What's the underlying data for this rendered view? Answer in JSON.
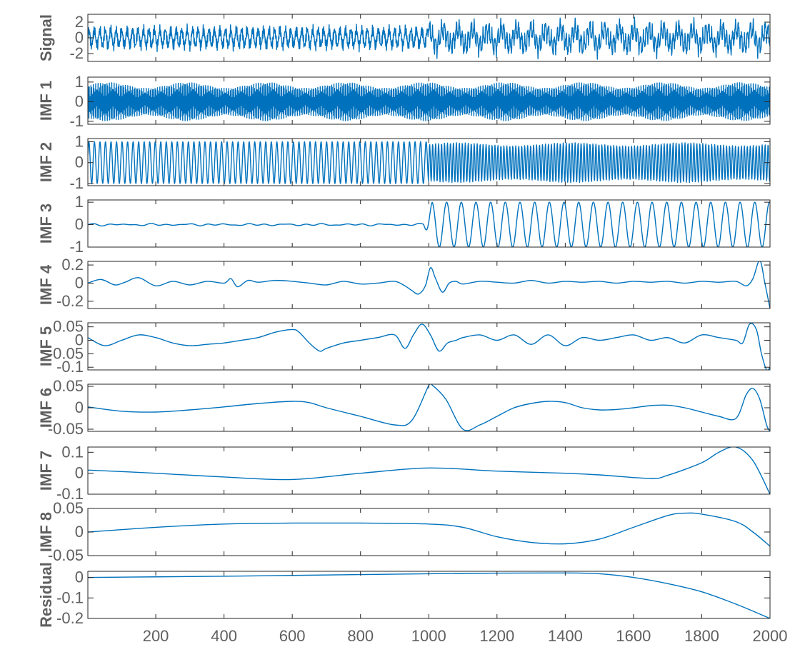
{
  "chart_data": {
    "type": "line",
    "title": "",
    "xlabel": "",
    "line_color": "#0072bd",
    "xlim": [
      1,
      2000
    ],
    "xticks": [
      "200",
      "400",
      "600",
      "800",
      "1000",
      "1200",
      "1400",
      "1600",
      "1800",
      "2000"
    ],
    "xtick_values": [
      200,
      400,
      600,
      800,
      1000,
      1200,
      1400,
      1600,
      1800,
      2000
    ],
    "panels": [
      {
        "name": "signal",
        "ylabel": "Signal",
        "ylim": [
          -3,
          3
        ],
        "yticks": [
          "2",
          "0",
          "-2"
        ],
        "ytick_values": [
          2,
          0,
          -2
        ],
        "model": "signal"
      },
      {
        "name": "imf1",
        "ylabel": "IMF 1",
        "ylim": [
          -1.15,
          1.25
        ],
        "yticks": [
          "1",
          "0",
          "-1"
        ],
        "ytick_values": [
          1,
          0,
          -1
        ],
        "model": "imf1"
      },
      {
        "name": "imf2",
        "ylabel": "IMF 2",
        "ylim": [
          -1.1,
          1.15
        ],
        "yticks": [
          "1",
          "0",
          "-1"
        ],
        "ytick_values": [
          1,
          0,
          -1
        ],
        "model": "imf2"
      },
      {
        "name": "imf3",
        "ylabel": "IMF 3",
        "ylim": [
          -1.0,
          1.1
        ],
        "yticks": [
          "1",
          "0",
          "-1"
        ],
        "ytick_values": [
          1,
          0,
          -1
        ],
        "model": "imf3"
      },
      {
        "name": "imf4",
        "ylabel": "IMF 4",
        "ylim": [
          -0.28,
          0.24
        ],
        "yticks": [
          "0.2",
          "0",
          "-0.2"
        ],
        "ytick_values": [
          0.2,
          0,
          -0.2
        ],
        "x": [
          1,
          40,
          80,
          110,
          150,
          200,
          250,
          300,
          350,
          400,
          420,
          440,
          470,
          500,
          550,
          600,
          650,
          700,
          750,
          800,
          850,
          900,
          930,
          950,
          970,
          990,
          1005,
          1020,
          1040,
          1060,
          1080,
          1100,
          1150,
          1200,
          1250,
          1300,
          1350,
          1400,
          1450,
          1500,
          1550,
          1600,
          1650,
          1700,
          1750,
          1800,
          1850,
          1900,
          1930,
          1950,
          1970,
          1985,
          2000
        ],
        "y": [
          0,
          0.04,
          -0.02,
          0.01,
          0.06,
          -0.03,
          0.02,
          -0.02,
          0.02,
          0.0,
          0.05,
          -0.04,
          0.03,
          0.01,
          0.03,
          0.02,
          0.0,
          -0.02,
          0.02,
          -0.01,
          0.0,
          0.02,
          -0.03,
          -0.08,
          -0.12,
          -0.03,
          0.17,
          0.05,
          -0.1,
          0.0,
          0.02,
          -0.01,
          0.02,
          0.01,
          0.0,
          0.03,
          0.0,
          0.02,
          0.01,
          0.02,
          0.0,
          0.02,
          0.01,
          0.02,
          0.0,
          0.02,
          0.01,
          0.02,
          -0.03,
          0.05,
          0.25,
          0.0,
          -0.28
        ]
      },
      {
        "name": "imf5",
        "ylabel": "IMF 5",
        "ylim": [
          -0.11,
          0.065
        ],
        "yticks": [
          "0.05",
          "0",
          "-0.05",
          "-0.1"
        ],
        "ytick_values": [
          0.05,
          0,
          -0.05,
          -0.1
        ],
        "x": [
          1,
          50,
          100,
          150,
          200,
          250,
          300,
          350,
          400,
          450,
          500,
          550,
          600,
          620,
          650,
          680,
          700,
          750,
          800,
          850,
          900,
          930,
          955,
          980,
          1005,
          1030,
          1055,
          1080,
          1100,
          1150,
          1200,
          1250,
          1300,
          1350,
          1400,
          1450,
          1500,
          1550,
          1600,
          1650,
          1700,
          1750,
          1800,
          1850,
          1900,
          1920,
          1940,
          1960,
          1975,
          1990,
          2000
        ],
        "y": [
          0.01,
          -0.02,
          0.0,
          0.02,
          0.01,
          -0.01,
          -0.02,
          -0.015,
          -0.01,
          0.0,
          0.01,
          0.03,
          0.04,
          0.03,
          -0.01,
          -0.04,
          -0.03,
          -0.01,
          0.0,
          0.01,
          0.02,
          -0.03,
          0.02,
          0.06,
          0.02,
          -0.04,
          -0.01,
          0.0,
          0.01,
          0.02,
          0.0,
          0.02,
          -0.015,
          0.02,
          -0.02,
          0.01,
          0.0,
          0.01,
          0.02,
          0.0,
          0.01,
          -0.01,
          0.02,
          0.01,
          0.0,
          -0.01,
          0.06,
          0.04,
          -0.05,
          -0.11,
          -0.1
        ]
      },
      {
        "name": "imf6",
        "ylabel": "IMF 6",
        "ylim": [
          -0.055,
          0.055
        ],
        "yticks": [
          "0.05",
          "0",
          "-0.05"
        ],
        "ytick_values": [
          0.05,
          0,
          -0.05
        ],
        "x": [
          1,
          100,
          200,
          300,
          400,
          500,
          600,
          650,
          700,
          800,
          900,
          950,
          1000,
          1010,
          1050,
          1100,
          1150,
          1200,
          1250,
          1300,
          1350,
          1400,
          1450,
          1500,
          1550,
          1600,
          1650,
          1700,
          1750,
          1800,
          1850,
          1900,
          1930,
          1950,
          1970,
          1990,
          2000
        ],
        "y": [
          0.002,
          -0.008,
          -0.01,
          -0.005,
          0.002,
          0.01,
          0.015,
          0.012,
          0.0,
          -0.02,
          -0.04,
          -0.03,
          0.052,
          0.053,
          0.02,
          -0.05,
          -0.04,
          -0.02,
          0.0,
          0.01,
          0.015,
          0.012,
          0.0,
          -0.005,
          -0.004,
          0.0,
          0.005,
          0.006,
          0.0,
          -0.01,
          -0.02,
          -0.025,
          0.03,
          0.045,
          0.02,
          -0.04,
          -0.055
        ]
      },
      {
        "name": "imf7",
        "ylabel": "IMF 7",
        "ylim": [
          -0.1,
          0.125
        ],
        "yticks": [
          "0.1",
          "0",
          "-0.1"
        ],
        "ytick_values": [
          0.1,
          0,
          -0.1
        ],
        "x": [
          1,
          200,
          400,
          600,
          800,
          1000,
          1200,
          1400,
          1500,
          1650,
          1700,
          1800,
          1850,
          1900,
          1950,
          2000
        ],
        "y": [
          0.015,
          0.0,
          -0.018,
          -0.03,
          0.0,
          0.025,
          0.01,
          0.0,
          -0.008,
          -0.025,
          -0.01,
          0.05,
          0.1,
          0.125,
          0.06,
          -0.1
        ]
      },
      {
        "name": "imf8",
        "ylabel": "IMF 8",
        "ylim": [
          -0.05,
          0.05
        ],
        "yticks": [
          "0.05",
          "0",
          "-0.05"
        ],
        "ytick_values": [
          0.05,
          0,
          -0.05
        ],
        "x": [
          1,
          200,
          400,
          600,
          800,
          1000,
          1100,
          1200,
          1300,
          1400,
          1500,
          1600,
          1700,
          1750,
          1800,
          1900,
          1950,
          2000
        ],
        "y": [
          0.0,
          0.01,
          0.017,
          0.019,
          0.019,
          0.017,
          0.01,
          -0.01,
          -0.022,
          -0.025,
          -0.015,
          0.01,
          0.035,
          0.04,
          0.038,
          0.022,
          0.0,
          -0.03
        ]
      },
      {
        "name": "residual",
        "ylabel": "Residual",
        "ylim": [
          -0.2,
          0.03
        ],
        "yticks": [
          "0",
          "-0.1",
          "-0.2"
        ],
        "ytick_values": [
          0,
          -0.1,
          -0.2
        ],
        "x": [
          1,
          200,
          400,
          600,
          800,
          1000,
          1200,
          1400,
          1500,
          1600,
          1700,
          1800,
          1900,
          2000
        ],
        "y": [
          0.0,
          0.003,
          0.006,
          0.01,
          0.014,
          0.018,
          0.021,
          0.022,
          0.018,
          0.0,
          -0.03,
          -0.07,
          -0.13,
          -0.2
        ]
      }
    ]
  }
}
